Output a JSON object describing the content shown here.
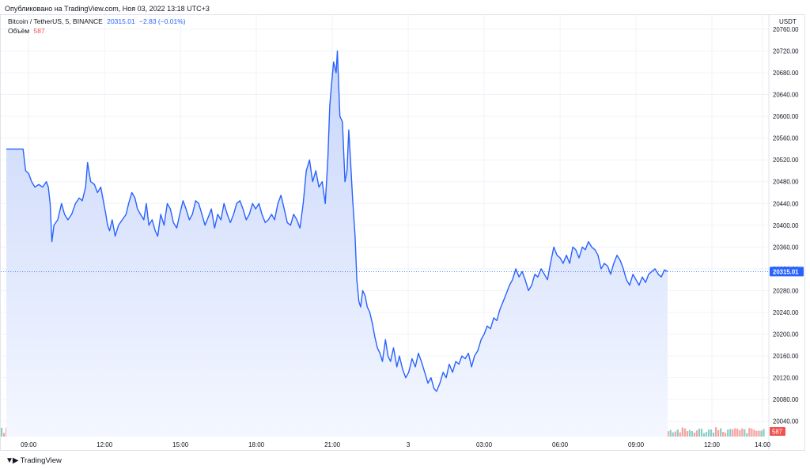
{
  "publication": "Опубликовано на TradingView.com, Ноя 03, 2022 13:18 UTC+3",
  "legend": {
    "symbol": "Bitcoin / TetherUS, 5, BINANCE",
    "price": "20315.01",
    "change": "−2.83 (−0.01%)",
    "volume_label": "Объём",
    "volume_value": "587"
  },
  "brand": "TradingView",
  "colors": {
    "line": "#2962ff",
    "area_top": "#c8d6fa",
    "area_bottom": "#f4f7ff",
    "vol_up": "#26a69a",
    "vol_down": "#ef5350",
    "grid": "#f0f3fa",
    "axis_text": "#131722",
    "price_tag": "#2962ff",
    "vol_tag": "#ef5350"
  },
  "chart_data": {
    "type": "area",
    "currency_label": "USDT",
    "ylim": [
      20012,
      20786
    ],
    "y_ticks": [
      20040,
      20080,
      20120,
      20160,
      20200,
      20240,
      20280,
      20320,
      20360,
      20400,
      20440,
      20480,
      20520,
      20560,
      20600,
      20640,
      20680,
      20720,
      20760
    ],
    "y_tick_labels": [
      "20040.00",
      "20080.00",
      "20120.00",
      "20160.00",
      "20200.00",
      "20240.00",
      "20280.00",
      "20320.00",
      "20360.00",
      "20400.00",
      "20440.00",
      "20480.00",
      "20520.00",
      "20560.00",
      "20600.00",
      "20640.00",
      "20680.00",
      "20720.00",
      "20760.00"
    ],
    "x_range_hours": [
      7.9,
      14.25
    ],
    "x_ticks": [
      {
        "t": 9,
        "label": "09:00"
      },
      {
        "t": 12,
        "label": "12:00"
      },
      {
        "t": 15,
        "label": "15:00"
      },
      {
        "t": 18,
        "label": "18:00"
      },
      {
        "t": 21,
        "label": "21:00"
      },
      {
        "t": 24,
        "label": "3"
      },
      {
        "t": 27,
        "label": "03:00"
      },
      {
        "t": 30,
        "label": "06:00"
      },
      {
        "t": 33,
        "label": "09:00"
      },
      {
        "t": 36,
        "label": "12:00"
      },
      {
        "t": 38,
        "label": "14:00"
      }
    ],
    "last_price": 20315.01,
    "last_price_label": "20315.01",
    "last_volume_label": "587",
    "price_series": [
      [
        8.78,
        20540
      ],
      [
        8.88,
        20500
      ],
      [
        9.0,
        20495
      ],
      [
        9.12,
        20480
      ],
      [
        9.25,
        20470
      ],
      [
        9.4,
        20475
      ],
      [
        9.55,
        20470
      ],
      [
        9.7,
        20480
      ],
      [
        9.78,
        20470
      ],
      [
        9.85,
        20440
      ],
      [
        9.92,
        20370
      ],
      [
        10.0,
        20400
      ],
      [
        10.15,
        20410
      ],
      [
        10.3,
        20440
      ],
      [
        10.42,
        20420
      ],
      [
        10.55,
        20410
      ],
      [
        10.7,
        20420
      ],
      [
        10.85,
        20440
      ],
      [
        11.0,
        20450
      ],
      [
        11.12,
        20445
      ],
      [
        11.25,
        20470
      ],
      [
        11.33,
        20515
      ],
      [
        11.45,
        20480
      ],
      [
        11.6,
        20475
      ],
      [
        11.72,
        20460
      ],
      [
        11.85,
        20470
      ],
      [
        11.95,
        20445
      ],
      [
        12.05,
        20420
      ],
      [
        12.12,
        20400
      ],
      [
        12.2,
        20390
      ],
      [
        12.3,
        20410
      ],
      [
        12.42,
        20380
      ],
      [
        12.55,
        20400
      ],
      [
        12.7,
        20410
      ],
      [
        12.85,
        20420
      ],
      [
        12.95,
        20440
      ],
      [
        13.08,
        20460
      ],
      [
        13.2,
        20450
      ],
      [
        13.3,
        20430
      ],
      [
        13.42,
        20420
      ],
      [
        13.55,
        20410
      ],
      [
        13.65,
        20440
      ],
      [
        13.75,
        20400
      ],
      [
        13.88,
        20410
      ],
      [
        14.0,
        20390
      ],
      [
        14.1,
        20380
      ],
      [
        14.22,
        20420
      ],
      [
        14.35,
        20400
      ],
      [
        14.48,
        20440
      ],
      [
        14.6,
        20430
      ],
      [
        14.72,
        20405
      ],
      [
        14.85,
        20395
      ],
      [
        14.97,
        20420
      ],
      [
        15.1,
        20445
      ],
      [
        15.22,
        20430
      ],
      [
        15.35,
        20410
      ],
      [
        15.47,
        20420
      ],
      [
        15.6,
        20445
      ],
      [
        15.72,
        20440
      ],
      [
        15.85,
        20420
      ],
      [
        15.97,
        20400
      ],
      [
        16.1,
        20415
      ],
      [
        16.22,
        20430
      ],
      [
        16.35,
        20395
      ],
      [
        16.47,
        20420
      ],
      [
        16.6,
        20410
      ],
      [
        16.72,
        20440
      ],
      [
        16.85,
        20420
      ],
      [
        16.97,
        20405
      ],
      [
        17.1,
        20420
      ],
      [
        17.22,
        20440
      ],
      [
        17.35,
        20445
      ],
      [
        17.47,
        20430
      ],
      [
        17.6,
        20410
      ],
      [
        17.72,
        20420
      ],
      [
        17.85,
        20440
      ],
      [
        17.97,
        20430
      ],
      [
        18.1,
        20440
      ],
      [
        18.22,
        20420
      ],
      [
        18.35,
        20405
      ],
      [
        18.47,
        20410
      ],
      [
        18.6,
        20420
      ],
      [
        18.72,
        20410
      ],
      [
        18.85,
        20440
      ],
      [
        18.97,
        20455
      ],
      [
        19.1,
        20430
      ],
      [
        19.22,
        20405
      ],
      [
        19.35,
        20400
      ],
      [
        19.47,
        20420
      ],
      [
        19.6,
        20410
      ],
      [
        19.72,
        20395
      ],
      [
        19.85,
        20440
      ],
      [
        19.97,
        20500
      ],
      [
        20.1,
        20520
      ],
      [
        20.22,
        20480
      ],
      [
        20.35,
        20500
      ],
      [
        20.47,
        20470
      ],
      [
        20.6,
        20480
      ],
      [
        20.72,
        20440
      ],
      [
        20.82,
        20520
      ],
      [
        20.9,
        20620
      ],
      [
        20.97,
        20660
      ],
      [
        21.05,
        20700
      ],
      [
        21.15,
        20680
      ],
      [
        21.2,
        20720
      ],
      [
        21.3,
        20600
      ],
      [
        21.4,
        20590
      ],
      [
        21.5,
        20480
      ],
      [
        21.58,
        20500
      ],
      [
        21.65,
        20575
      ],
      [
        21.72,
        20520
      ],
      [
        21.8,
        20450
      ],
      [
        21.9,
        20380
      ],
      [
        21.97,
        20300
      ],
      [
        22.05,
        20260
      ],
      [
        22.12,
        20250
      ],
      [
        22.2,
        20280
      ],
      [
        22.3,
        20270
      ],
      [
        22.38,
        20250
      ],
      [
        22.48,
        20240
      ],
      [
        22.58,
        20220
      ],
      [
        22.68,
        20195
      ],
      [
        22.78,
        20175
      ],
      [
        22.88,
        20165
      ],
      [
        22.98,
        20150
      ],
      [
        23.1,
        20190
      ],
      [
        23.2,
        20160
      ],
      [
        23.3,
        20150
      ],
      [
        23.42,
        20175
      ],
      [
        23.55,
        20140
      ],
      [
        23.65,
        20160
      ],
      [
        23.78,
        20135
      ],
      [
        23.9,
        20120
      ],
      [
        24.02,
        20130
      ],
      [
        24.15,
        20155
      ],
      [
        24.28,
        20140
      ],
      [
        24.4,
        20165
      ],
      [
        24.52,
        20150
      ],
      [
        24.65,
        20130
      ],
      [
        24.78,
        20110
      ],
      [
        24.9,
        20120
      ],
      [
        25.02,
        20100
      ],
      [
        25.12,
        20095
      ],
      [
        25.25,
        20110
      ],
      [
        25.38,
        20130
      ],
      [
        25.5,
        20120
      ],
      [
        25.62,
        20145
      ],
      [
        25.75,
        20130
      ],
      [
        25.88,
        20150
      ],
      [
        26.0,
        20145
      ],
      [
        26.12,
        20160
      ],
      [
        26.25,
        20155
      ],
      [
        26.38,
        20165
      ],
      [
        26.5,
        20140
      ],
      [
        26.62,
        20160
      ],
      [
        26.75,
        20170
      ],
      [
        26.88,
        20190
      ],
      [
        27.0,
        20200
      ],
      [
        27.12,
        20215
      ],
      [
        27.25,
        20210
      ],
      [
        27.38,
        20230
      ],
      [
        27.5,
        20225
      ],
      [
        27.62,
        20245
      ],
      [
        27.75,
        20260
      ],
      [
        27.88,
        20275
      ],
      [
        28.0,
        20290
      ],
      [
        28.12,
        20300
      ],
      [
        28.25,
        20320
      ],
      [
        28.38,
        20305
      ],
      [
        28.5,
        20315
      ],
      [
        28.62,
        20300
      ],
      [
        28.75,
        20280
      ],
      [
        28.88,
        20290
      ],
      [
        29.0,
        20310
      ],
      [
        29.12,
        20305
      ],
      [
        29.25,
        20320
      ],
      [
        29.38,
        20310
      ],
      [
        29.5,
        20300
      ],
      [
        29.62,
        20330
      ],
      [
        29.75,
        20360
      ],
      [
        29.88,
        20345
      ],
      [
        30.0,
        20340
      ],
      [
        30.12,
        20330
      ],
      [
        30.25,
        20345
      ],
      [
        30.38,
        20330
      ],
      [
        30.5,
        20360
      ],
      [
        30.62,
        20355
      ],
      [
        30.75,
        20340
      ],
      [
        30.88,
        20360
      ],
      [
        31.0,
        20355
      ],
      [
        31.12,
        20370
      ],
      [
        31.25,
        20360
      ],
      [
        31.38,
        20355
      ],
      [
        31.5,
        20345
      ],
      [
        31.62,
        20320
      ],
      [
        31.75,
        20330
      ],
      [
        31.88,
        20325
      ],
      [
        32.0,
        20310
      ],
      [
        32.12,
        20330
      ],
      [
        32.25,
        20345
      ],
      [
        32.38,
        20335
      ],
      [
        32.5,
        20320
      ],
      [
        32.62,
        20300
      ],
      [
        32.75,
        20290
      ],
      [
        32.88,
        20310
      ],
      [
        33.0,
        20300
      ],
      [
        33.12,
        20290
      ],
      [
        33.25,
        20305
      ],
      [
        33.38,
        20295
      ],
      [
        33.5,
        20310
      ],
      [
        33.62,
        20315
      ],
      [
        33.75,
        20320
      ],
      [
        33.88,
        20310
      ],
      [
        34.0,
        20305
      ],
      [
        34.12,
        20318
      ],
      [
        34.25,
        20315
      ]
    ],
    "volume_series_note": "",
    "volume": {
      "ylim": [
        0,
        1
      ]
    }
  }
}
